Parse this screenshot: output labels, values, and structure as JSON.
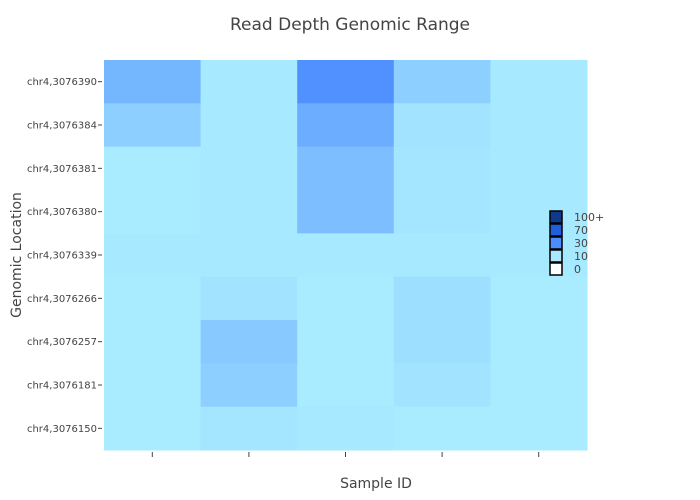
{
  "chart_data": {
    "type": "heatmap",
    "title": "Read Depth Genomic Range",
    "xlabel": "Sample ID",
    "ylabel": "Genomic Location",
    "x_categories": [
      "",
      "",
      "",
      "",
      ""
    ],
    "y_categories": [
      "chr4,3076390",
      "chr4,3076384",
      "chr4,3076381",
      "chr4,3076380",
      "chr4,3076339",
      "chr4,3076266",
      "chr4,3076257",
      "chr4,3076181",
      "chr4,3076150"
    ],
    "values": [
      [
        22,
        1,
        38,
        12,
        1
      ],
      [
        12,
        1,
        26,
        3,
        1
      ],
      [
        0,
        1,
        19,
        2,
        1
      ],
      [
        0,
        1,
        19,
        2,
        1
      ],
      [
        1,
        1,
        1,
        1,
        1
      ],
      [
        0,
        3,
        0,
        5,
        0
      ],
      [
        0,
        14,
        0,
        5,
        0
      ],
      [
        0,
        12,
        0,
        3,
        0
      ],
      [
        0,
        2,
        1,
        0,
        0
      ]
    ],
    "colorscale": {
      "stops": [
        {
          "label": "100+",
          "value": 100,
          "color": "#0d3a8c"
        },
        {
          "label": "70",
          "value": 70,
          "color": "#1f5fdc"
        },
        {
          "label": "30",
          "value": 30,
          "color": "#4b8cff"
        },
        {
          "label": "10",
          "value": 10,
          "color": "#a9e6ff"
        },
        {
          "label": "0",
          "value": 0,
          "color": "#ffffff"
        }
      ]
    },
    "legend_position": "right"
  }
}
